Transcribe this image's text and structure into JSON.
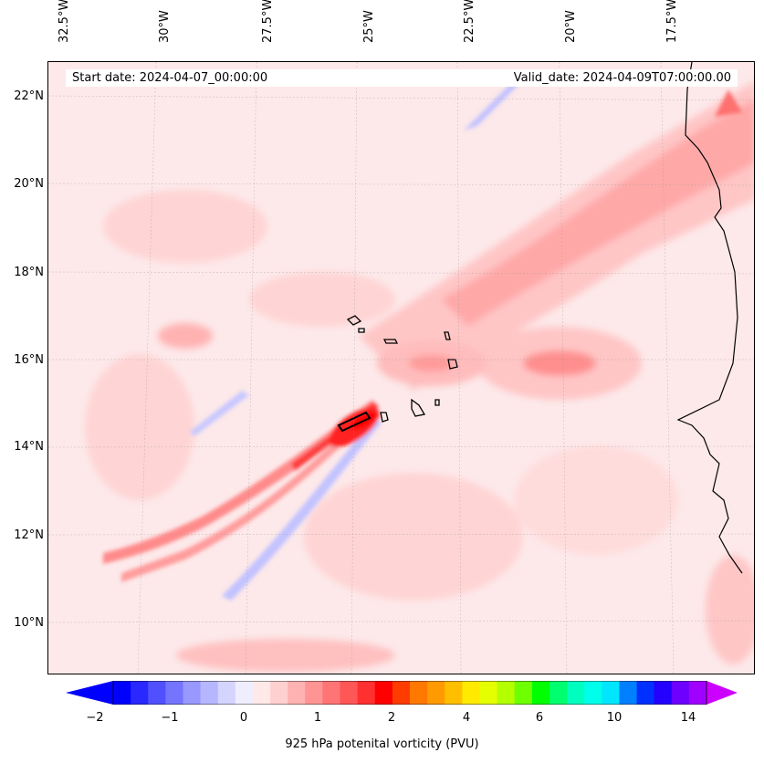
{
  "header": {
    "start": "Start date: 2024-04-07_00:00:00",
    "valid": "Valid_date: 2024-04-09T07:00:00.00"
  },
  "lon_labels": [
    "32.5°W",
    "30°W",
    "27.5°W",
    "25°W",
    "22.5°W",
    "20°W",
    "17.5°W"
  ],
  "lat_labels": [
    "22°N",
    "20°N",
    "18°N",
    "16°N",
    "14°N",
    "12°N",
    "10°N"
  ],
  "colorbar": {
    "ticks": [
      "−2",
      "−1",
      "0",
      "1",
      "2",
      "4",
      "6",
      "10",
      "14"
    ],
    "label": "925 hPa potenital vorticity (PVU)",
    "colors": [
      "#0000ff",
      "#2929ff",
      "#5050ff",
      "#7474ff",
      "#9898ff",
      "#b6b6ff",
      "#d4d4ff",
      "#eeeeff",
      "#ffe8e8",
      "#ffd0d0",
      "#ffb2b2",
      "#ff9494",
      "#ff7474",
      "#ff5656",
      "#ff3030",
      "#ff0000",
      "#ff3c00",
      "#ff7800",
      "#ff9a00",
      "#ffbe00",
      "#ffea00",
      "#e6ff00",
      "#b4ff00",
      "#6eff00",
      "#00ff00",
      "#00ff6e",
      "#00ffbe",
      "#00ffea",
      "#00e6ff",
      "#0080ff",
      "#0030ff",
      "#2400ff",
      "#6e00ff",
      "#a000ff"
    ],
    "min_arrow": "#0000ff",
    "max_arrow": "#cc00ff"
  }
}
